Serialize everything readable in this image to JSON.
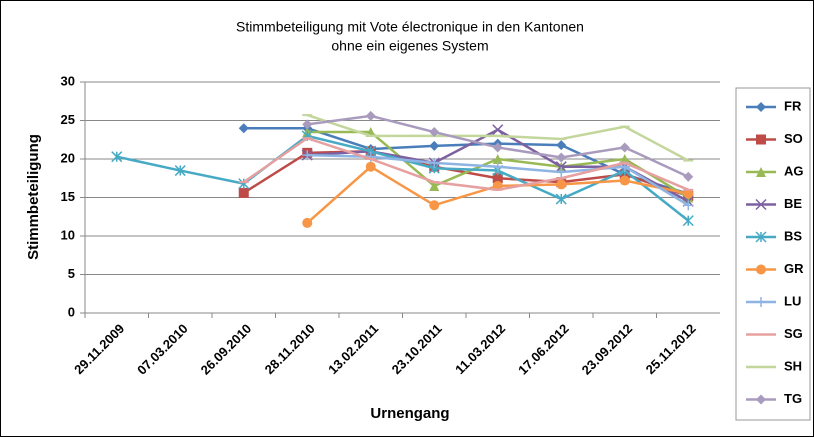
{
  "chart_data": {
    "type": "line",
    "title": [
      "Stimmbeteiligung mit Vote électronique in den Kantonen",
      "ohne ein eigenes System"
    ],
    "x_label": "Urnengang",
    "y_label": "Stimmbeteiligung",
    "categories": [
      "29.11.2009",
      "07.03.2010",
      "26.09.2010",
      "28.11.2010",
      "13.02.2011",
      "23.10.2011",
      "11.03.2012",
      "17.06.2012",
      "23.09.2012",
      "25.11.2012"
    ],
    "ylim": [
      0,
      30
    ],
    "yticks": [
      0,
      5,
      10,
      15,
      20,
      25,
      30
    ],
    "grid": true,
    "series": [
      {
        "name": "FR",
        "color": "#4a7ebb",
        "marker": "diamond",
        "values": [
          null,
          null,
          24,
          24,
          21.3,
          21.7,
          22,
          21.8,
          18,
          15.5
        ]
      },
      {
        "name": "SO",
        "color": "#be4b48",
        "marker": "square",
        "values": [
          null,
          null,
          15.6,
          20.8,
          21,
          19,
          17.5,
          17,
          18,
          15.2
        ]
      },
      {
        "name": "AG",
        "color": "#98b954",
        "marker": "triangle",
        "values": [
          null,
          null,
          null,
          23.5,
          23.5,
          16.5,
          20,
          19,
          20,
          15
        ]
      },
      {
        "name": "BE",
        "color": "#7d60a0",
        "marker": "x",
        "values": [
          null,
          null,
          null,
          20.5,
          21,
          19.5,
          23.8,
          19,
          19,
          14.5
        ]
      },
      {
        "name": "BS",
        "color": "#46aac5",
        "marker": "star",
        "values": [
          20.3,
          18.5,
          16.8,
          23,
          21,
          18.8,
          18.5,
          14.8,
          18.5,
          12
        ]
      },
      {
        "name": "GR",
        "color": "#f79646",
        "marker": "circle",
        "values": [
          null,
          null,
          null,
          11.7,
          19,
          14,
          16.5,
          16.7,
          17.2,
          15.5
        ]
      },
      {
        "name": "LU",
        "color": "#8eb4e3",
        "marker": "plus",
        "values": [
          null,
          null,
          null,
          20.5,
          20.3,
          19.5,
          19,
          18.3,
          19,
          14
        ]
      },
      {
        "name": "SG",
        "color": "#e6a0a0",
        "marker": "dash",
        "values": [
          null,
          null,
          17,
          22.7,
          20,
          17,
          16,
          17.5,
          19.5,
          16
        ]
      },
      {
        "name": "SH",
        "color": "#c3d69b",
        "marker": "dash",
        "values": [
          null,
          null,
          null,
          25.7,
          23,
          23,
          23,
          22.6,
          24.2,
          19.8
        ]
      },
      {
        "name": "TG",
        "color": "#a99bbd",
        "marker": "diamond",
        "values": [
          null,
          null,
          null,
          24.5,
          25.6,
          23.5,
          21.5,
          20.2,
          21.5,
          17.7
        ]
      }
    ]
  }
}
